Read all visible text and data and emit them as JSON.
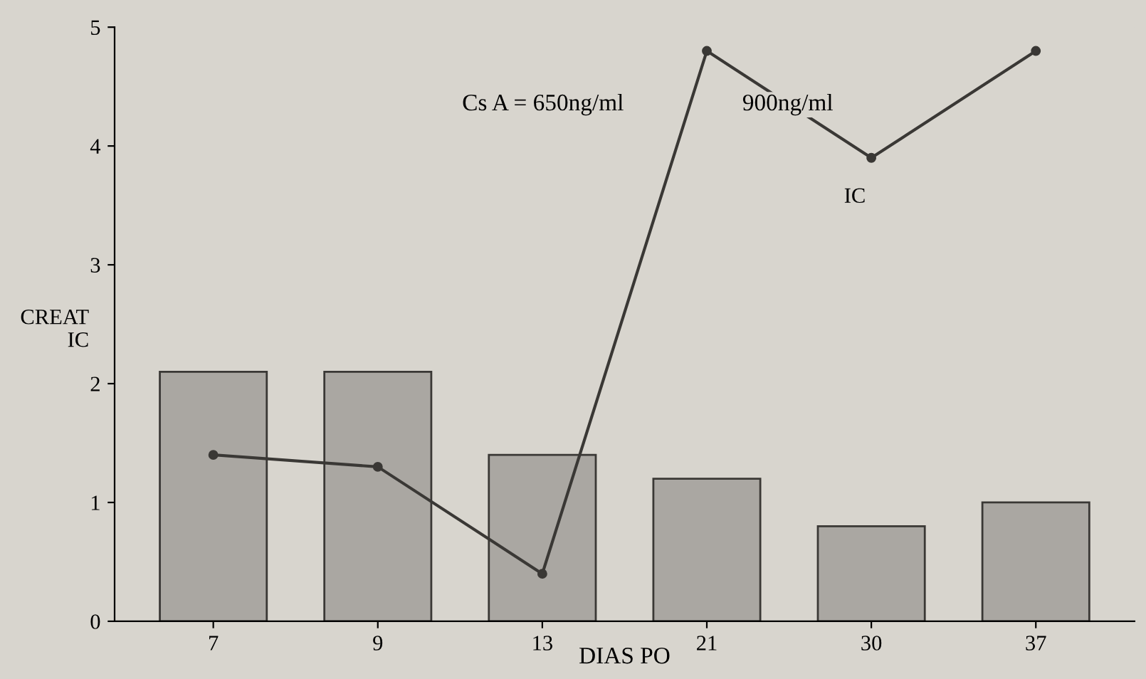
{
  "chart_data": {
    "type": "bar",
    "xlabel": "DIAS PO",
    "ylabel": "CREAT\nIC",
    "categories": [
      "7",
      "9",
      "13",
      "21",
      "30",
      "37"
    ],
    "series": [
      {
        "color": "#aaa7a2",
        "values": [
          2.1,
          2.1,
          1.4,
          1.2,
          0.8,
          1.0
        ]
      },
      {
        "type": "line",
        "name": "IC",
        "color": "#3a3835",
        "values": [
          1.4,
          1.3,
          0.4,
          4.8,
          3.9,
          4.8
        ]
      }
    ],
    "ylim": [
      0,
      5
    ],
    "yticks": [
      0,
      1,
      2,
      3,
      4,
      5
    ],
    "grid": false,
    "legend": false,
    "marker": "circle",
    "annotations": [
      "Cs A = 650ng/ml",
      "900ng/ml"
    ]
  }
}
